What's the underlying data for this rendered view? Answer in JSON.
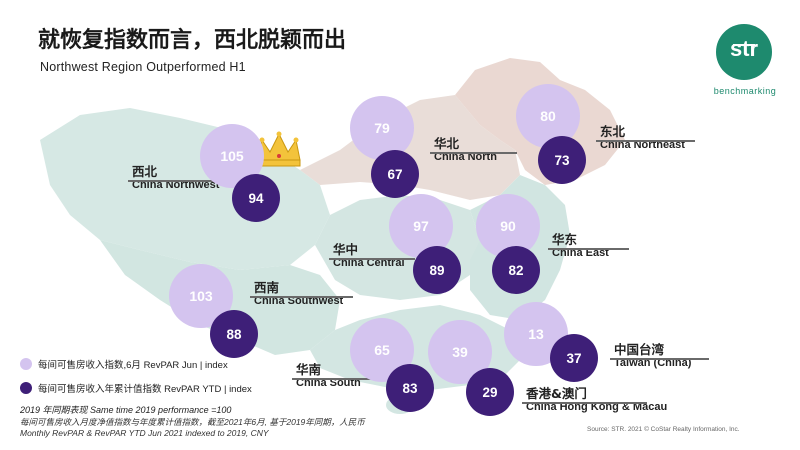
{
  "title": "就恢复指数而言，西北脱颖而出",
  "subtitle": "Northwest Region Outperformed H1",
  "logo": {
    "text": "str",
    "tagline": "benchmarking"
  },
  "regions": [
    {
      "id": "northwest",
      "cn": "西北",
      "en": "China Northwest",
      "jun": "105",
      "ytd": "94"
    },
    {
      "id": "north",
      "cn": "华北",
      "en": "China North",
      "jun": "79",
      "ytd": "67"
    },
    {
      "id": "northeast",
      "cn": "东北",
      "en": "China Northeast",
      "jun": "80",
      "ytd": "73"
    },
    {
      "id": "central",
      "cn": "华中",
      "en": "China Central",
      "jun": "97",
      "ytd": "89"
    },
    {
      "id": "east",
      "cn": "华东",
      "en": "China East",
      "jun": "90",
      "ytd": "82"
    },
    {
      "id": "southwest",
      "cn": "西南",
      "en": "China Southwest",
      "jun": "103",
      "ytd": "88"
    },
    {
      "id": "south",
      "cn": "华南",
      "en": "China South",
      "jun": "65",
      "ytd": "83"
    },
    {
      "id": "hkmacau",
      "cn": "香港&澳门",
      "en": "China Hong Kong & Macau",
      "jun": "39",
      "ytd": "29"
    },
    {
      "id": "taiwan",
      "cn": "中国台湾",
      "en": "Taiwan (China)",
      "jun": "13",
      "ytd": "37"
    }
  ],
  "legend": {
    "jun": "每间可售房收入指数,6月 RevPAR Jun | index",
    "ytd": "每间可售房收入年累计值指数 RevPAR YTD | index"
  },
  "notes": {
    "baseline": "2019 年同期表现 Same time 2019 performance =100",
    "cn": "每间可售房收入月度净值指数与年度累计值指数，截至2021年6月, 基于2019年同期，人民币",
    "en": "Monthly RevPAR & RevPAR YTD Jun 2021 indexed to 2019, CNY"
  },
  "source": "Source: STR. 2021 © CoStar Realty Information, Inc.",
  "colors": {
    "jun": "#d4c4ef",
    "ytd": "#3e1f78",
    "brand": "#1e8a6e",
    "crown": "#f3c33b"
  }
}
